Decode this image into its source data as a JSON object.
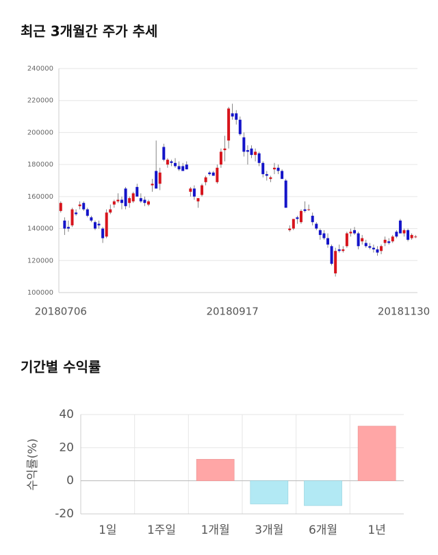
{
  "chart_data": [
    {
      "type": "candlestick",
      "title": "최근 3개월간 주가 추세",
      "categories": [
        "20180706",
        null,
        null,
        null,
        null,
        null,
        null,
        null,
        null,
        null,
        null,
        null,
        null,
        null,
        null,
        null,
        null,
        null,
        null,
        null,
        null,
        null,
        null,
        null,
        null,
        null,
        null,
        null,
        null,
        null,
        null,
        null,
        null,
        null,
        null,
        null,
        null,
        null,
        null,
        null,
        null,
        null,
        null,
        null,
        null,
        "20180917",
        null,
        null,
        null,
        null,
        null,
        null,
        null,
        null,
        null,
        null,
        null,
        null,
        null,
        null,
        null,
        null,
        null,
        null,
        null,
        null,
        null,
        null,
        null,
        null,
        null,
        null,
        null,
        null,
        null,
        null,
        null,
        null,
        null,
        null,
        null,
        null,
        null,
        null,
        null,
        null,
        null,
        null,
        null,
        null,
        null,
        null,
        null,
        "20181130"
      ],
      "open": [
        151000,
        145000,
        141000,
        142000,
        150000,
        154000,
        156000,
        152000,
        147000,
        144000,
        143000,
        140000,
        135000,
        150000,
        155000,
        157000,
        158000,
        165000,
        156000,
        157000,
        166000,
        159000,
        158000,
        155000,
        167000,
        176000,
        168000,
        191000,
        180000,
        182000,
        181000,
        179000,
        179000,
        180000,
        163000,
        165000,
        157000,
        161000,
        169000,
        175000,
        175000,
        169000,
        180000,
        189000,
        195000,
        212000,
        212000,
        208000,
        197000,
        189000,
        190000,
        186000,
        187000,
        181000,
        174000,
        171000,
        177000,
        178000,
        176000,
        170000,
        139000,
        140000,
        147000,
        144000,
        152000,
        152000,
        148000,
        143000,
        139000,
        137000,
        134000,
        129000,
        112000,
        127000,
        126000,
        129000,
        137000,
        139000,
        137000,
        132000,
        131000,
        129000,
        128000,
        127000,
        126000,
        131000,
        132000,
        132000,
        138000,
        145000,
        137000,
        139000,
        134000,
        135000
      ],
      "high": [
        157000,
        147000,
        145000,
        153000,
        152000,
        157000,
        157000,
        153000,
        148000,
        145000,
        145000,
        141000,
        152000,
        155000,
        158000,
        162000,
        160000,
        166000,
        160000,
        163000,
        168000,
        162000,
        160000,
        158000,
        171000,
        195000,
        178000,
        193000,
        184000,
        183000,
        184000,
        182000,
        181000,
        182000,
        166000,
        167000,
        159000,
        168000,
        173000,
        176000,
        176000,
        180000,
        190000,
        198000,
        216000,
        218000,
        214000,
        210000,
        200000,
        192000,
        192000,
        190000,
        188000,
        182000,
        176000,
        173000,
        181000,
        180000,
        177000,
        171000,
        142000,
        146000,
        148000,
        152000,
        157000,
        155000,
        150000,
        144000,
        140000,
        139000,
        137000,
        130000,
        128000,
        130000,
        129000,
        138000,
        140000,
        141000,
        138000,
        136000,
        133000,
        131000,
        130000,
        129000,
        130000,
        135000,
        134000,
        136000,
        139000,
        146000,
        140000,
        140000,
        137000,
        136000
      ],
      "low": [
        150000,
        136000,
        138000,
        141000,
        148000,
        152000,
        151000,
        147000,
        144000,
        139000,
        140000,
        131000,
        134000,
        149000,
        153000,
        156000,
        152000,
        152000,
        153000,
        156000,
        160000,
        156000,
        154000,
        154000,
        163000,
        165000,
        164000,
        182000,
        178000,
        179000,
        178000,
        176000,
        176000,
        177000,
        160000,
        158000,
        153000,
        160000,
        167000,
        173000,
        173000,
        168000,
        178000,
        182000,
        190000,
        208000,
        205000,
        198000,
        185000,
        180000,
        184000,
        182000,
        179000,
        172000,
        170000,
        169000,
        174000,
        174000,
        171000,
        153000,
        138000,
        139000,
        143000,
        143000,
        150000,
        151000,
        142000,
        139000,
        133000,
        133000,
        128000,
        117000,
        110000,
        125000,
        125000,
        128000,
        135000,
        136000,
        127000,
        130000,
        128000,
        127000,
        125000,
        123000,
        124000,
        129000,
        130000,
        131000,
        134000,
        137000,
        135000,
        132000,
        133000,
        134000
      ],
      "close": [
        156000,
        140000,
        140000,
        152000,
        149000,
        155000,
        152000,
        148000,
        145000,
        140000,
        142000,
        134000,
        150000,
        152000,
        157000,
        158000,
        156000,
        154000,
        159000,
        162000,
        160000,
        157000,
        156000,
        157000,
        168000,
        165000,
        175000,
        183000,
        183000,
        181000,
        179000,
        177000,
        176000,
        177000,
        165000,
        160000,
        159000,
        167000,
        172000,
        174000,
        173000,
        178000,
        188000,
        190000,
        215000,
        210000,
        208000,
        199000,
        188000,
        188000,
        186000,
        188000,
        181000,
        174000,
        173000,
        172000,
        178000,
        176000,
        171000,
        153000,
        140000,
        146000,
        146000,
        151000,
        151000,
        152000,
        144000,
        140000,
        136000,
        134000,
        130000,
        118000,
        126000,
        126000,
        127000,
        137000,
        138000,
        137000,
        129000,
        134000,
        129000,
        128000,
        127000,
        125000,
        129000,
        133000,
        131000,
        135000,
        135000,
        137000,
        139000,
        133000,
        136000,
        135000
      ],
      "up_color": "#d7141c",
      "down_color": "#1414c8",
      "ylim": [
        100000,
        240000
      ],
      "yticks": [
        100000,
        120000,
        140000,
        160000,
        180000,
        200000,
        220000,
        240000
      ],
      "grid": true
    },
    {
      "type": "bar",
      "title": "기간별 수익률",
      "y_label": "수익률(%)",
      "categories": [
        "1일",
        "1주일",
        "1개월",
        "3개월",
        "6개월",
        "1년"
      ],
      "values": [
        0,
        0,
        13,
        -14,
        -15,
        33
      ],
      "positive_color": "#ffa6a6",
      "negative_color": "#b2e9f4",
      "ylim": [
        -20,
        40
      ],
      "yticks": [
        -20,
        0,
        20,
        40
      ],
      "grid": true
    }
  ]
}
